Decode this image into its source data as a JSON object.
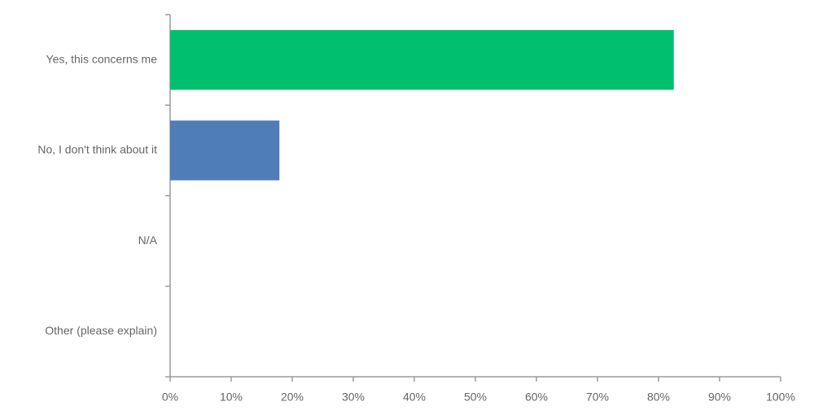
{
  "chart_data": {
    "type": "bar",
    "orientation": "horizontal",
    "categories": [
      "Yes, this concerns me",
      "No, I don't think about it",
      "N/A",
      "Other (please explain)"
    ],
    "values": [
      82.5,
      17.9,
      0,
      0
    ],
    "colors": [
      "#00bf6f",
      "#4f7db8",
      "#4f7db8",
      "#4f7db8"
    ],
    "xlim": [
      0,
      100
    ],
    "xticks": [
      {
        "value": 0,
        "label": "0%"
      },
      {
        "value": 10,
        "label": "10%"
      },
      {
        "value": 20,
        "label": "20%"
      },
      {
        "value": 30,
        "label": "30%"
      },
      {
        "value": 40,
        "label": "40%"
      },
      {
        "value": 50,
        "label": "50%"
      },
      {
        "value": 60,
        "label": "60%"
      },
      {
        "value": 70,
        "label": "70%"
      },
      {
        "value": 80,
        "label": "80%"
      },
      {
        "value": 90,
        "label": "90%"
      },
      {
        "value": 100,
        "label": "100%"
      }
    ],
    "grid": false
  }
}
